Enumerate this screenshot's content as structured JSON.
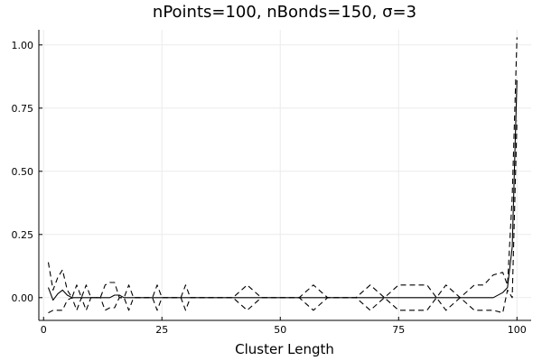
{
  "chart_data": {
    "type": "line",
    "title": "nPoints=100, nBonds=150, σ=3",
    "xlabel": "Cluster Length",
    "ylabel": "",
    "xlim": [
      -1,
      103
    ],
    "ylim": [
      -0.09,
      1.06
    ],
    "xticks": [
      0,
      25,
      50,
      75,
      100
    ],
    "xtick_labels": [
      "0",
      "25",
      "50",
      "75",
      "100"
    ],
    "yticks": [
      0.0,
      0.25,
      0.5,
      0.75,
      1.0
    ],
    "ytick_labels": [
      "0.00",
      "0.25",
      "0.50",
      "0.75",
      "1.00"
    ],
    "grid": true,
    "legend": "none",
    "series_color": "#000000",
    "series": [
      {
        "style": "solid",
        "x": [
          1,
          2,
          3,
          4,
          5,
          6,
          7,
          8,
          9,
          10,
          11,
          12,
          13,
          14,
          15,
          16,
          17,
          18,
          19,
          20,
          21,
          22,
          23,
          24,
          25,
          26,
          27,
          28,
          29,
          30,
          31,
          32,
          33,
          40,
          43,
          46,
          50,
          54,
          57,
          60,
          66,
          69,
          72,
          75,
          78,
          81,
          83,
          85,
          88,
          91,
          93,
          95,
          97,
          98,
          99,
          100
        ],
        "y": [
          0.04,
          -0.01,
          0.015,
          0.03,
          0.01,
          0.0,
          0.0,
          0.0,
          0.0,
          0.0,
          0.0,
          0.0,
          0.0,
          0.0,
          0.01,
          0.01,
          0.0,
          0.0,
          0.0,
          0.0,
          0.0,
          0.0,
          0.0,
          0.0,
          0.0,
          0.0,
          0.0,
          0.0,
          0.0,
          0.0,
          0.0,
          0.0,
          0.0,
          0.0,
          0.0,
          0.0,
          0.0,
          0.0,
          0.0,
          0.0,
          0.0,
          0.0,
          0.0,
          0.0,
          0.0,
          0.0,
          0.0,
          0.0,
          0.0,
          0.0,
          0.0,
          0.0,
          0.02,
          0.04,
          0.2,
          0.86
        ]
      },
      {
        "style": "dashed",
        "x": [
          1,
          2,
          3,
          4,
          5,
          6,
          7,
          8,
          9,
          10,
          11,
          12,
          13,
          14,
          15,
          16,
          17,
          18,
          19,
          20,
          21,
          22,
          23,
          24,
          25,
          26,
          27,
          28,
          29,
          30,
          31,
          32,
          33,
          40,
          43,
          46,
          50,
          54,
          57,
          60,
          66,
          69,
          72,
          75,
          78,
          81,
          83,
          85,
          88,
          91,
          93,
          95,
          97,
          98,
          99,
          100
        ],
        "y": [
          0.14,
          0.03,
          0.08,
          0.11,
          0.03,
          0.0,
          0.05,
          0.0,
          0.05,
          0.0,
          0.0,
          0.0,
          0.05,
          0.06,
          0.06,
          0.0,
          0.0,
          0.05,
          0.0,
          0.0,
          0.0,
          0.0,
          0.0,
          0.05,
          0.0,
          0.0,
          0.0,
          0.0,
          0.0,
          0.05,
          0.0,
          0.0,
          0.0,
          0.0,
          0.05,
          0.0,
          0.0,
          0.0,
          0.05,
          0.0,
          0.0,
          0.05,
          0.0,
          0.05,
          0.05,
          0.05,
          0.0,
          0.05,
          0.0,
          0.05,
          0.05,
          0.09,
          0.1,
          0.05,
          0.4,
          1.03
        ]
      },
      {
        "style": "dashed",
        "x": [
          1,
          2,
          3,
          4,
          5,
          6,
          7,
          8,
          9,
          10,
          11,
          12,
          13,
          14,
          15,
          16,
          17,
          18,
          19,
          20,
          21,
          22,
          23,
          24,
          25,
          26,
          27,
          28,
          29,
          30,
          31,
          32,
          33,
          40,
          43,
          46,
          50,
          54,
          57,
          60,
          66,
          69,
          72,
          75,
          78,
          81,
          83,
          85,
          88,
          91,
          93,
          95,
          97,
          98,
          99,
          100
        ],
        "y": [
          -0.06,
          -0.05,
          -0.05,
          -0.05,
          -0.01,
          0.0,
          -0.05,
          0.0,
          -0.05,
          0.0,
          0.0,
          0.0,
          -0.05,
          -0.04,
          -0.04,
          0.0,
          0.0,
          -0.05,
          0.0,
          0.0,
          0.0,
          0.0,
          0.0,
          -0.05,
          0.0,
          0.0,
          0.0,
          0.0,
          0.0,
          -0.05,
          0.0,
          0.0,
          0.0,
          0.0,
          -0.05,
          0.0,
          0.0,
          0.0,
          -0.05,
          0.0,
          0.0,
          -0.05,
          0.0,
          -0.05,
          -0.05,
          -0.05,
          0.0,
          -0.05,
          0.0,
          -0.05,
          -0.05,
          -0.05,
          -0.06,
          0.03,
          0.0,
          0.7
        ]
      }
    ]
  }
}
